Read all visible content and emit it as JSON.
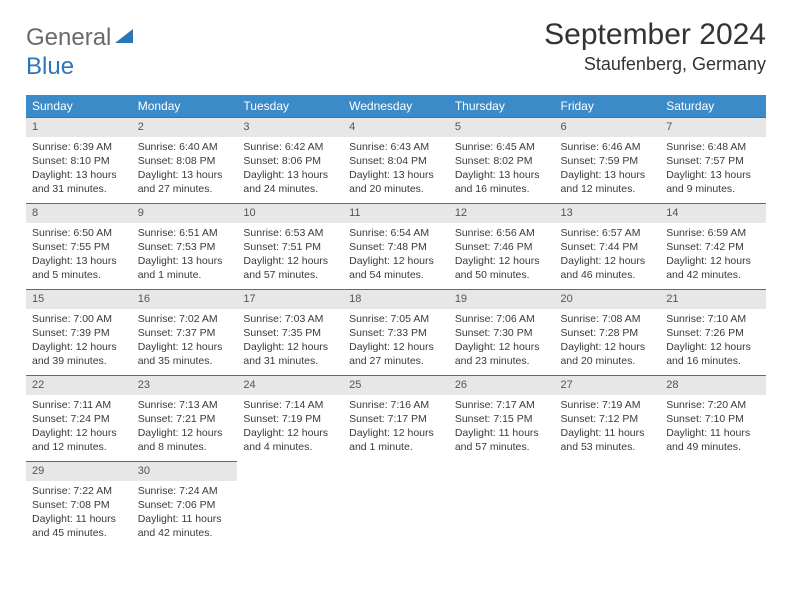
{
  "brand": {
    "part1": "General",
    "part2": "Blue"
  },
  "title": "September 2024",
  "location": "Staufenberg, Germany",
  "colors": {
    "header_bg": "#3b8bc8",
    "brand_gray": "#6a6a6a",
    "brand_blue": "#2d76b8",
    "daynum_bg": "#e7e7e7",
    "text": "#333333"
  },
  "weekdays": [
    "Sunday",
    "Monday",
    "Tuesday",
    "Wednesday",
    "Thursday",
    "Friday",
    "Saturday"
  ],
  "days": [
    {
      "n": "1",
      "sr": "Sunrise: 6:39 AM",
      "ss": "Sunset: 8:10 PM",
      "d1": "Daylight: 13 hours",
      "d2": "and 31 minutes."
    },
    {
      "n": "2",
      "sr": "Sunrise: 6:40 AM",
      "ss": "Sunset: 8:08 PM",
      "d1": "Daylight: 13 hours",
      "d2": "and 27 minutes."
    },
    {
      "n": "3",
      "sr": "Sunrise: 6:42 AM",
      "ss": "Sunset: 8:06 PM",
      "d1": "Daylight: 13 hours",
      "d2": "and 24 minutes."
    },
    {
      "n": "4",
      "sr": "Sunrise: 6:43 AM",
      "ss": "Sunset: 8:04 PM",
      "d1": "Daylight: 13 hours",
      "d2": "and 20 minutes."
    },
    {
      "n": "5",
      "sr": "Sunrise: 6:45 AM",
      "ss": "Sunset: 8:02 PM",
      "d1": "Daylight: 13 hours",
      "d2": "and 16 minutes."
    },
    {
      "n": "6",
      "sr": "Sunrise: 6:46 AM",
      "ss": "Sunset: 7:59 PM",
      "d1": "Daylight: 13 hours",
      "d2": "and 12 minutes."
    },
    {
      "n": "7",
      "sr": "Sunrise: 6:48 AM",
      "ss": "Sunset: 7:57 PM",
      "d1": "Daylight: 13 hours",
      "d2": "and 9 minutes."
    },
    {
      "n": "8",
      "sr": "Sunrise: 6:50 AM",
      "ss": "Sunset: 7:55 PM",
      "d1": "Daylight: 13 hours",
      "d2": "and 5 minutes."
    },
    {
      "n": "9",
      "sr": "Sunrise: 6:51 AM",
      "ss": "Sunset: 7:53 PM",
      "d1": "Daylight: 13 hours",
      "d2": "and 1 minute."
    },
    {
      "n": "10",
      "sr": "Sunrise: 6:53 AM",
      "ss": "Sunset: 7:51 PM",
      "d1": "Daylight: 12 hours",
      "d2": "and 57 minutes."
    },
    {
      "n": "11",
      "sr": "Sunrise: 6:54 AM",
      "ss": "Sunset: 7:48 PM",
      "d1": "Daylight: 12 hours",
      "d2": "and 54 minutes."
    },
    {
      "n": "12",
      "sr": "Sunrise: 6:56 AM",
      "ss": "Sunset: 7:46 PM",
      "d1": "Daylight: 12 hours",
      "d2": "and 50 minutes."
    },
    {
      "n": "13",
      "sr": "Sunrise: 6:57 AM",
      "ss": "Sunset: 7:44 PM",
      "d1": "Daylight: 12 hours",
      "d2": "and 46 minutes."
    },
    {
      "n": "14",
      "sr": "Sunrise: 6:59 AM",
      "ss": "Sunset: 7:42 PM",
      "d1": "Daylight: 12 hours",
      "d2": "and 42 minutes."
    },
    {
      "n": "15",
      "sr": "Sunrise: 7:00 AM",
      "ss": "Sunset: 7:39 PM",
      "d1": "Daylight: 12 hours",
      "d2": "and 39 minutes."
    },
    {
      "n": "16",
      "sr": "Sunrise: 7:02 AM",
      "ss": "Sunset: 7:37 PM",
      "d1": "Daylight: 12 hours",
      "d2": "and 35 minutes."
    },
    {
      "n": "17",
      "sr": "Sunrise: 7:03 AM",
      "ss": "Sunset: 7:35 PM",
      "d1": "Daylight: 12 hours",
      "d2": "and 31 minutes."
    },
    {
      "n": "18",
      "sr": "Sunrise: 7:05 AM",
      "ss": "Sunset: 7:33 PM",
      "d1": "Daylight: 12 hours",
      "d2": "and 27 minutes."
    },
    {
      "n": "19",
      "sr": "Sunrise: 7:06 AM",
      "ss": "Sunset: 7:30 PM",
      "d1": "Daylight: 12 hours",
      "d2": "and 23 minutes."
    },
    {
      "n": "20",
      "sr": "Sunrise: 7:08 AM",
      "ss": "Sunset: 7:28 PM",
      "d1": "Daylight: 12 hours",
      "d2": "and 20 minutes."
    },
    {
      "n": "21",
      "sr": "Sunrise: 7:10 AM",
      "ss": "Sunset: 7:26 PM",
      "d1": "Daylight: 12 hours",
      "d2": "and 16 minutes."
    },
    {
      "n": "22",
      "sr": "Sunrise: 7:11 AM",
      "ss": "Sunset: 7:24 PM",
      "d1": "Daylight: 12 hours",
      "d2": "and 12 minutes."
    },
    {
      "n": "23",
      "sr": "Sunrise: 7:13 AM",
      "ss": "Sunset: 7:21 PM",
      "d1": "Daylight: 12 hours",
      "d2": "and 8 minutes."
    },
    {
      "n": "24",
      "sr": "Sunrise: 7:14 AM",
      "ss": "Sunset: 7:19 PM",
      "d1": "Daylight: 12 hours",
      "d2": "and 4 minutes."
    },
    {
      "n": "25",
      "sr": "Sunrise: 7:16 AM",
      "ss": "Sunset: 7:17 PM",
      "d1": "Daylight: 12 hours",
      "d2": "and 1 minute."
    },
    {
      "n": "26",
      "sr": "Sunrise: 7:17 AM",
      "ss": "Sunset: 7:15 PM",
      "d1": "Daylight: 11 hours",
      "d2": "and 57 minutes."
    },
    {
      "n": "27",
      "sr": "Sunrise: 7:19 AM",
      "ss": "Sunset: 7:12 PM",
      "d1": "Daylight: 11 hours",
      "d2": "and 53 minutes."
    },
    {
      "n": "28",
      "sr": "Sunrise: 7:20 AM",
      "ss": "Sunset: 7:10 PM",
      "d1": "Daylight: 11 hours",
      "d2": "and 49 minutes."
    },
    {
      "n": "29",
      "sr": "Sunrise: 7:22 AM",
      "ss": "Sunset: 7:08 PM",
      "d1": "Daylight: 11 hours",
      "d2": "and 45 minutes."
    },
    {
      "n": "30",
      "sr": "Sunrise: 7:24 AM",
      "ss": "Sunset: 7:06 PM",
      "d1": "Daylight: 11 hours",
      "d2": "and 42 minutes."
    }
  ]
}
